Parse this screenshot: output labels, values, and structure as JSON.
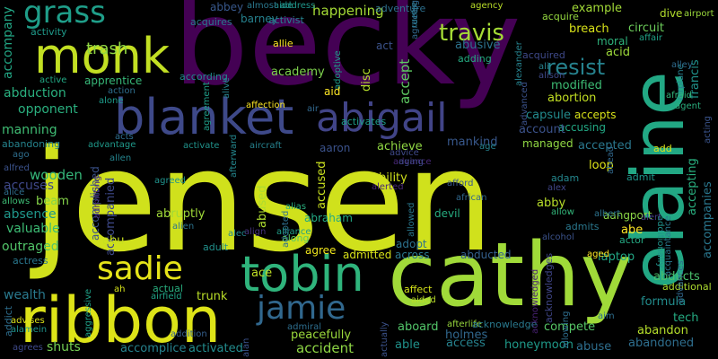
{
  "words": [
    {
      "text": "jensen",
      "color": "#d0e11c"
    },
    {
      "text": "becky",
      "color": "#440154"
    },
    {
      "text": "cathy",
      "color": "#a0da39"
    },
    {
      "text": "ribbon",
      "color": "#dde318"
    },
    {
      "text": "elaine",
      "color": "#22a884"
    },
    {
      "text": "blanket",
      "color": "#3e4989"
    },
    {
      "text": "tobin",
      "color": "#2fb47c"
    },
    {
      "text": "monk",
      "color": "#c2df23"
    },
    {
      "text": "abigail",
      "color": "#414487"
    },
    {
      "text": "sadie",
      "color": "#e5e419"
    },
    {
      "text": "jamie",
      "color": "#31688e"
    },
    {
      "text": "grass",
      "color": "#1f9e89"
    },
    {
      "text": "travis",
      "color": "#a5db36"
    },
    {
      "text": "resist",
      "color": "#26828e"
    },
    {
      "text": "trash",
      "color": "#90d743"
    },
    {
      "text": "abbey",
      "color": "#38588c"
    },
    {
      "text": "barney",
      "color": "#26818e"
    },
    {
      "text": "acquires",
      "color": "#2a788e"
    },
    {
      "text": "activity",
      "color": "#1f9a8a"
    },
    {
      "text": "accompany",
      "color": "#22a785"
    },
    {
      "text": "abduction",
      "color": "#2ab07f"
    },
    {
      "text": "opponent",
      "color": "#2ab07f"
    },
    {
      "text": "manning",
      "color": "#3fbc73"
    },
    {
      "text": "abandoning",
      "color": "#25848e"
    },
    {
      "text": "accuses",
      "color": "#3f4889"
    },
    {
      "text": "wooden",
      "color": "#35b779"
    },
    {
      "text": "beam",
      "color": "#86d549"
    },
    {
      "text": "absence",
      "color": "#1f978b"
    },
    {
      "text": "valuable",
      "color": "#3dbc74"
    },
    {
      "text": "outraged",
      "color": "#52c569"
    },
    {
      "text": "actress",
      "color": "#2a778e"
    },
    {
      "text": "wealth",
      "color": "#29798e"
    },
    {
      "text": "aggressive",
      "color": "#1fa187"
    },
    {
      "text": "addict",
      "color": "#2e6e8e"
    },
    {
      "text": "agrees",
      "color": "#3e4989"
    },
    {
      "text": "shuts",
      "color": "#75d054"
    },
    {
      "text": "happening",
      "color": "#a5db36"
    },
    {
      "text": "academy",
      "color": "#7fd34e"
    },
    {
      "text": "accept",
      "color": "#5ec962"
    },
    {
      "text": "disc",
      "color": "#b5de2b"
    },
    {
      "text": "abusive",
      "color": "#2c738e"
    },
    {
      "text": "example",
      "color": "#a2da37"
    },
    {
      "text": "breach",
      "color": "#d8e219"
    },
    {
      "text": "circuit",
      "color": "#6ccd5a"
    },
    {
      "text": "moral",
      "color": "#2eb37c"
    },
    {
      "text": "acid",
      "color": "#9dd93b"
    },
    {
      "text": "modified",
      "color": "#3dbc74"
    },
    {
      "text": "abortion",
      "color": "#c2df23"
    },
    {
      "text": "capsule",
      "color": "#228b8d"
    },
    {
      "text": "accepts",
      "color": "#d8e219"
    },
    {
      "text": "accusing",
      "color": "#22a884"
    },
    {
      "text": "account",
      "color": "#3b528b"
    },
    {
      "text": "mankind",
      "color": "#38588c"
    },
    {
      "text": "achieve",
      "color": "#90d743"
    },
    {
      "text": "accepted",
      "color": "#2a788e"
    },
    {
      "text": "managed",
      "color": "#90d743"
    },
    {
      "text": "accused",
      "color": "#cae11f"
    },
    {
      "text": "abused",
      "color": "#addc30"
    },
    {
      "text": "ability",
      "color": "#d0e11c"
    },
    {
      "text": "abruptly",
      "color": "#a0da39"
    },
    {
      "text": "abraham",
      "color": "#23a983"
    },
    {
      "text": "devil",
      "color": "#27ad81"
    },
    {
      "text": "abby",
      "color": "#b8de29"
    },
    {
      "text": "adopt",
      "color": "#2c728e"
    },
    {
      "text": "abducted",
      "color": "#35608d"
    },
    {
      "text": "accompanied",
      "color": "#3e4989"
    },
    {
      "text": "laptop",
      "color": "#22a785"
    },
    {
      "text": "abe",
      "color": "#fde725"
    },
    {
      "text": "abducts",
      "color": "#4ac16d"
    },
    {
      "text": "formula",
      "color": "#228d8d"
    },
    {
      "text": "tech",
      "color": "#25ab82"
    },
    {
      "text": "abandon",
      "color": "#b5de2b"
    },
    {
      "text": "abandoned",
      "color": "#2e6e8e"
    },
    {
      "text": "compete",
      "color": "#56c667"
    },
    {
      "text": "abuse",
      "color": "#2e6e8e"
    },
    {
      "text": "honeymoon",
      "color": "#1f9a8a"
    },
    {
      "text": "access",
      "color": "#26828e"
    },
    {
      "text": "accident",
      "color": "#8ed645"
    },
    {
      "text": "able",
      "color": "#20928c"
    },
    {
      "text": "aboard",
      "color": "#52c569"
    },
    {
      "text": "holmes",
      "color": "#31688e"
    },
    {
      "text": "peacefully",
      "color": "#9bd93c"
    },
    {
      "text": "accomplice",
      "color": "#26828e"
    },
    {
      "text": "activated",
      "color": "#228c8d"
    },
    {
      "text": "trunk",
      "color": "#bade28"
    },
    {
      "text": "actual",
      "color": "#29af7f"
    },
    {
      "text": "ace",
      "color": "#c0df25"
    },
    {
      "text": "abu",
      "color": "#c8e020"
    },
    {
      "text": "agree",
      "color": "#efe51c"
    },
    {
      "text": "admitted",
      "color": "#d8e219"
    },
    {
      "text": "across",
      "color": "#2a788e"
    },
    {
      "text": "accomplished",
      "color": "#3b528b"
    },
    {
      "text": "aaron",
      "color": "#3b528b"
    },
    {
      "text": "loop",
      "color": "#dde318"
    },
    {
      "text": "aangport",
      "color": "#8bd646"
    },
    {
      "text": "adam",
      "color": "#24878e"
    },
    {
      "text": "admit",
      "color": "#1f968b"
    },
    {
      "text": "admits",
      "color": "#2a788e"
    },
    {
      "text": "actor",
      "color": "#24aa83"
    },
    {
      "text": "add",
      "color": "#dde318"
    },
    {
      "text": "accepting",
      "color": "#29af7f"
    },
    {
      "text": "accompanies",
      "color": "#2a778e"
    },
    {
      "text": "acquire",
      "color": "#95d840"
    },
    {
      "text": "dive",
      "color": "#b2dd2d"
    },
    {
      "text": "acquired",
      "color": "#3e4989"
    },
    {
      "text": "francis",
      "color": "#20938c"
    },
    {
      "text": "apprentice",
      "color": "#37b878"
    },
    {
      "text": "according",
      "color": "#23898e"
    },
    {
      "text": "activates",
      "color": "#1f9e89"
    },
    {
      "text": "adding",
      "color": "#25ac82"
    },
    {
      "text": "adult",
      "color": "#21918c"
    },
    {
      "text": "additional",
      "color": "#addc30"
    },
    {
      "text": "adventure",
      "color": "#2d708e"
    },
    {
      "text": "addition",
      "color": "#355f8d"
    },
    {
      "text": "additionally",
      "color": "#20938c"
    },
    {
      "text": "afterlife",
      "color": "#98d83e"
    },
    {
      "text": "acknowledge",
      "color": "#29798e"
    },
    {
      "text": "acknowledges",
      "color": "#404688"
    },
    {
      "text": "acknowledged",
      "color": "#482173"
    },
    {
      "text": "affect",
      "color": "#d5e21a"
    },
    {
      "text": "aided",
      "color": "#bade28"
    },
    {
      "text": "alliance",
      "color": "#1f9f88"
    },
    {
      "text": "along",
      "color": "#5cc863"
    },
    {
      "text": "alias",
      "color": "#2ab07f"
    },
    {
      "text": "align",
      "color": "#46337e"
    },
    {
      "text": "alec",
      "color": "#24868e"
    },
    {
      "text": "alien",
      "color": "#2c738e"
    },
    {
      "text": "advice",
      "color": "#3e4989"
    },
    {
      "text": "advance",
      "color": "#482878"
    },
    {
      "text": "aging",
      "color": "#3e4989"
    },
    {
      "text": "allie",
      "color": "#fde725"
    },
    {
      "text": "adoptive",
      "color": "#1e9c89"
    },
    {
      "text": "activist",
      "color": "#25848e"
    },
    {
      "text": "aide",
      "color": "#21918c"
    },
    {
      "text": "almost",
      "color": "#2a788e"
    },
    {
      "text": "address",
      "color": "#1f968b"
    },
    {
      "text": "agency",
      "color": "#bade28"
    },
    {
      "text": "agreeing",
      "color": "#31688e"
    },
    {
      "text": "alarm",
      "color": "#2a788e"
    },
    {
      "text": "airport",
      "color": "#9bd93c"
    },
    {
      "text": "affair",
      "color": "#20a386"
    },
    {
      "text": "alley",
      "color": "#2f6b8e"
    },
    {
      "text": "airplane",
      "color": "#27808e"
    },
    {
      "text": "afraid",
      "color": "#31b57b"
    },
    {
      "text": "agent",
      "color": "#2ab07f"
    },
    {
      "text": "acting",
      "color": "#3a548c"
    },
    {
      "text": "aid",
      "color": "#fde725"
    },
    {
      "text": "act",
      "color": "#3b528b"
    },
    {
      "text": "affection",
      "color": "#fde725"
    },
    {
      "text": "advantage",
      "color": "#1f998a"
    },
    {
      "text": "alone",
      "color": "#1e9b8a"
    },
    {
      "text": "action",
      "color": "#2e6e8e"
    },
    {
      "text": "advises",
      "color": "#dde318"
    },
    {
      "text": "alamein",
      "color": "#1f948c"
    },
    {
      "text": "ago",
      "color": "#2e6e8e"
    },
    {
      "text": "alfred",
      "color": "#3b528b"
    },
    {
      "text": "alice",
      "color": "#2e6e8e"
    },
    {
      "text": "allows",
      "color": "#3dbc74"
    },
    {
      "text": "allen",
      "color": "#25858e"
    },
    {
      "text": "agreed",
      "color": "#20938c"
    },
    {
      "text": "afterward",
      "color": "#24878e"
    },
    {
      "text": "admiral",
      "color": "#2e6e8e"
    },
    {
      "text": "ah",
      "color": "#d5e21a"
    },
    {
      "text": "airfield",
      "color": "#20a486"
    },
    {
      "text": "actually",
      "color": "#3b528b"
    },
    {
      "text": "alan",
      "color": "#3b528b"
    },
    {
      "text": "alerted",
      "color": "#482878"
    },
    {
      "text": "allowed",
      "color": "#2a788e"
    },
    {
      "text": "african",
      "color": "#31688e"
    },
    {
      "text": "alcohol",
      "color": "#3b528b"
    },
    {
      "text": "alex",
      "color": "#404688"
    },
    {
      "text": "allow",
      "color": "#32b67a"
    },
    {
      "text": "albert",
      "color": "#2c738e"
    },
    {
      "text": "alert",
      "color": "#433d84"
    },
    {
      "text": "aged",
      "color": "#fde725"
    },
    {
      "text": "aim",
      "color": "#2e6e8e"
    },
    {
      "text": "allowing",
      "color": "#2e6e8e"
    },
    {
      "text": "alexander",
      "color": "#26828e"
    },
    {
      "text": "ali",
      "color": "#26828e"
    },
    {
      "text": "alison",
      "color": "#3e4989"
    },
    {
      "text": "advanced",
      "color": "#3b528b"
    },
    {
      "text": "acquaintance",
      "color": "#2a788e"
    },
    {
      "text": "advances",
      "color": "#31688e"
    },
    {
      "text": "ahead",
      "color": "#31688e"
    },
    {
      "text": "afford",
      "color": "#38588c"
    },
    {
      "text": "adopted",
      "color": "#2e6e8e"
    },
    {
      "text": "age",
      "color": "#26828e"
    },
    {
      "text": "acts",
      "color": "#2e6e8e"
    },
    {
      "text": "admitting",
      "color": "#482878"
    },
    {
      "text": "aircraft",
      "color": "#26828e"
    },
    {
      "text": "activate",
      "color": "#20938c"
    },
    {
      "text": "agreement",
      "color": "#1f9e89"
    },
    {
      "text": "alive",
      "color": "#26828e"
    },
    {
      "text": "air",
      "color": "#31688e"
    },
    {
      "text": "active",
      "color": "#22a884"
    }
  ]
}
